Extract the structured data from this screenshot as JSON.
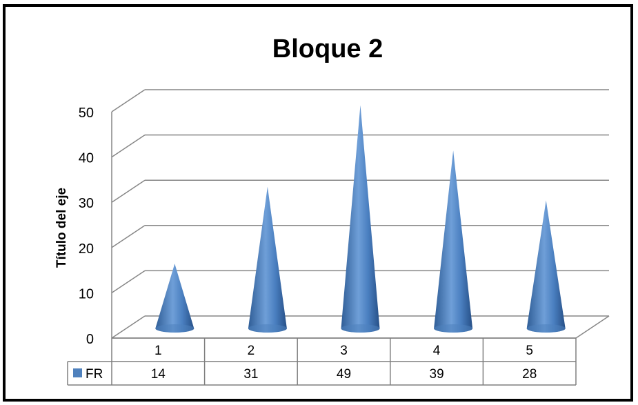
{
  "chart_data": {
    "type": "bar",
    "shape": "cone",
    "title": "Bloque 2",
    "ylabel": "Título del eje",
    "xlabel": "",
    "ylim": [
      0,
      50
    ],
    "yticks": [
      0,
      10,
      20,
      30,
      40,
      50
    ],
    "categories": [
      "1",
      "2",
      "3",
      "4",
      "5"
    ],
    "series": [
      {
        "name": "FR",
        "values": [
          14,
          31,
          49,
          39,
          28
        ],
        "color": "#4f81bd"
      }
    ],
    "data_table": true,
    "gridlines": true,
    "legend": "data-table"
  }
}
